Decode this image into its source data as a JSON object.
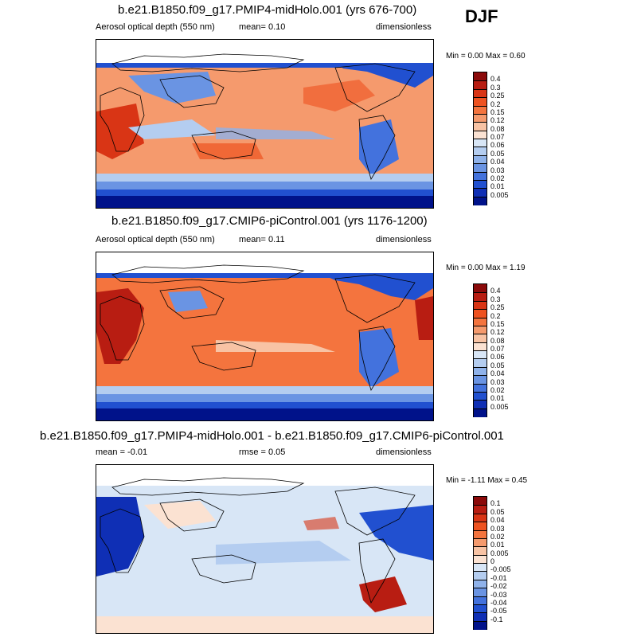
{
  "season": "DJF",
  "panels": [
    {
      "title": "b.e21.B1850.f09_g17.PMIP4-midHolo.001 (yrs 676-700)",
      "left_label": "Aerosol optical depth (550 nm)",
      "mean_text": "mean=   0.10",
      "units": "dimensionless",
      "minmax": "Min =   0.00 Max =   0.60",
      "colorbar_labels": [
        "0.4",
        "0.3",
        "0.25",
        "0.2",
        "0.15",
        "0.12",
        "0.08",
        "0.07",
        "0.06",
        "0.05",
        "0.04",
        "0.03",
        "0.02",
        "0.01",
        "0.005"
      ],
      "colors": [
        "#8b0a0a",
        "#b81d12",
        "#d93515",
        "#ee5220",
        "#f4743e",
        "#f59a6d",
        "#f8c3a4",
        "#fbe2d2",
        "#d8e6f6",
        "#b4cdf0",
        "#8fb2ea",
        "#6a94e3",
        "#4372dd",
        "#2150d0",
        "#0f2fb5",
        "#00128a"
      ]
    },
    {
      "title": "b.e21.B1850.f09_g17.CMIP6-piControl.001 (yrs 1176-1200)",
      "left_label": "Aerosol optical depth (550 nm)",
      "mean_text": "mean=   0.11",
      "units": "dimensionless",
      "minmax": "Min =   0.00 Max =   1.19",
      "colorbar_labels": [
        "0.4",
        "0.3",
        "0.25",
        "0.2",
        "0.15",
        "0.12",
        "0.08",
        "0.07",
        "0.06",
        "0.05",
        "0.04",
        "0.03",
        "0.02",
        "0.01",
        "0.005"
      ],
      "colors": [
        "#8b0a0a",
        "#b81d12",
        "#d93515",
        "#ee5220",
        "#f4743e",
        "#f59a6d",
        "#f8c3a4",
        "#fbe2d2",
        "#d8e6f6",
        "#b4cdf0",
        "#8fb2ea",
        "#6a94e3",
        "#4372dd",
        "#2150d0",
        "#0f2fb5",
        "#00128a"
      ]
    },
    {
      "title": "b.e21.B1850.f09_g17.PMIP4-midHolo.001 - b.e21.B1850.f09_g17.CMIP6-piControl.001",
      "left_label": "mean =  -0.01",
      "mean_text": "rmse =   0.05",
      "units": "dimensionless",
      "minmax": "Min =  -1.11 Max =   0.45",
      "colorbar_labels": [
        "0.1",
        "0.05",
        "0.04",
        "0.03",
        "0.02",
        "0.01",
        "0.005",
        "0",
        "-0.005",
        "-0.01",
        "-0.02",
        "-0.03",
        "-0.04",
        "-0.05",
        "-0.1"
      ],
      "colors": [
        "#8b0a0a",
        "#b81d12",
        "#d93515",
        "#ee5220",
        "#f4743e",
        "#f59a6d",
        "#f8c3a4",
        "#fbe2d2",
        "#d8e6f6",
        "#b4cdf0",
        "#8fb2ea",
        "#6a94e3",
        "#4372dd",
        "#2150d0",
        "#0f2fb5",
        "#00128a"
      ]
    }
  ],
  "chart_data": [
    {
      "type": "heatmap",
      "title": "b.e21.B1850.f09_g17.PMIP4-midHolo.001 (yrs 676-700)",
      "variable": "Aerosol optical depth (550 nm)",
      "season": "DJF",
      "mean": 0.1,
      "min": 0.0,
      "max": 0.6,
      "units": "dimensionless",
      "levels": [
        0.005,
        0.01,
        0.02,
        0.03,
        0.04,
        0.05,
        0.06,
        0.07,
        0.08,
        0.12,
        0.15,
        0.2,
        0.25,
        0.3,
        0.4
      ]
    },
    {
      "type": "heatmap",
      "title": "b.e21.B1850.f09_g17.CMIP6-piControl.001 (yrs 1176-1200)",
      "variable": "Aerosol optical depth (550 nm)",
      "season": "DJF",
      "mean": 0.11,
      "min": 0.0,
      "max": 1.19,
      "units": "dimensionless",
      "levels": [
        0.005,
        0.01,
        0.02,
        0.03,
        0.04,
        0.05,
        0.06,
        0.07,
        0.08,
        0.12,
        0.15,
        0.2,
        0.25,
        0.3,
        0.4
      ]
    },
    {
      "type": "heatmap",
      "title": "b.e21.B1850.f09_g17.PMIP4-midHolo.001 - b.e21.B1850.f09_g17.CMIP6-piControl.001",
      "mean": -0.01,
      "rmse": 0.05,
      "min": -1.11,
      "max": 0.45,
      "units": "dimensionless",
      "levels": [
        -0.1,
        -0.05,
        -0.04,
        -0.03,
        -0.02,
        -0.01,
        -0.005,
        0,
        0.005,
        0.01,
        0.02,
        0.03,
        0.04,
        0.05,
        0.1
      ]
    }
  ]
}
